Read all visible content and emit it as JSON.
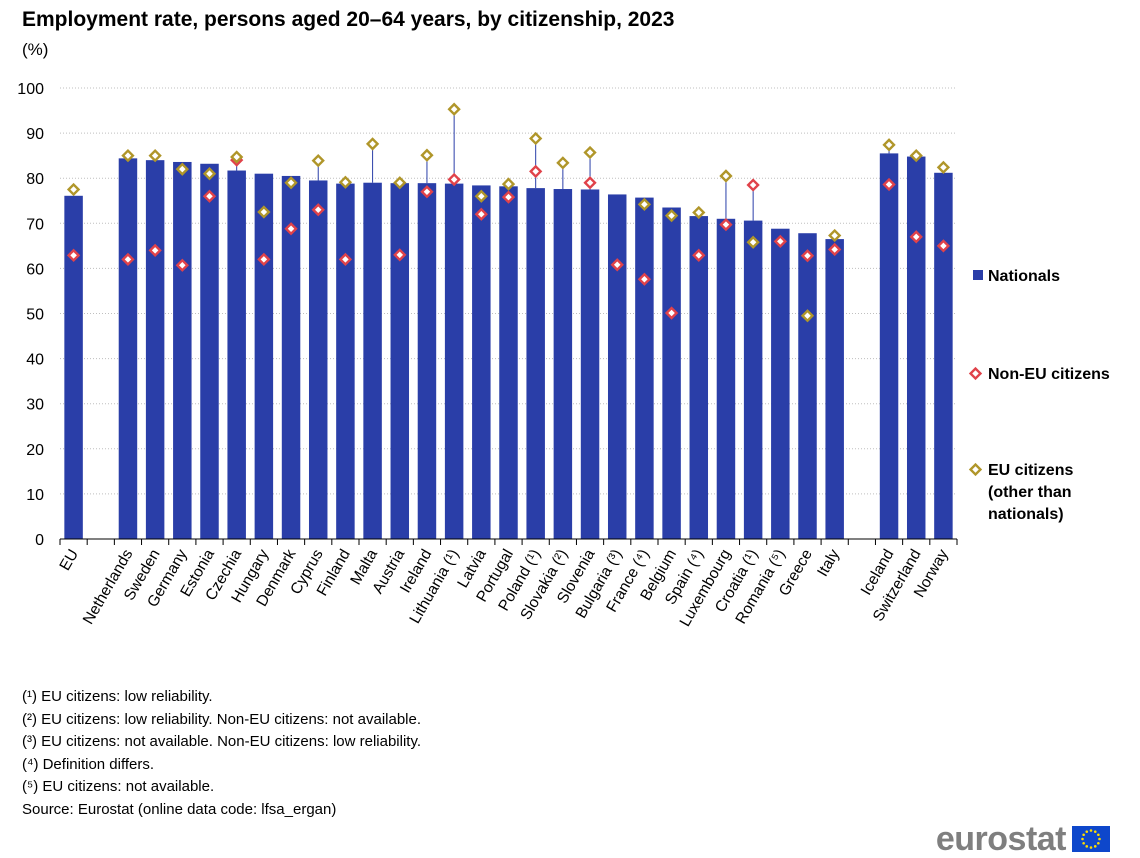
{
  "title": "Employment rate, persons aged 20–64 years, by citizenship, 2023",
  "subtitle": "(%)",
  "colors": {
    "nationals": "#2a3ea8",
    "non_eu": "#e0424a",
    "eu": "#b0962a",
    "grid": "#bfbfbf",
    "axis": "#000000",
    "logo_text": "#7f7f7f",
    "flag": "#0e47cb",
    "stars": "#ffdd00"
  },
  "chart_data": {
    "type": "bar",
    "title": "Employment rate, persons aged 20–64 years, by citizenship, 2023",
    "ylabel": "(%)",
    "ylim": [
      0,
      100
    ],
    "yticks": [
      0,
      10,
      20,
      30,
      40,
      50,
      60,
      70,
      80,
      90,
      100
    ],
    "grid": true,
    "legend_position": "right",
    "groups": [
      [
        "EU"
      ],
      [
        "Netherlands",
        "Sweden",
        "Germany",
        "Estonia",
        "Czechia",
        "Hungary",
        "Denmark",
        "Cyprus",
        "Finland",
        "Malta",
        "Austria",
        "Ireland",
        "Lithuania (¹)",
        "Latvia",
        "Portugal",
        "Poland (¹)",
        "Slovakia (²)",
        "Slovenia",
        "Bulgaria (³)",
        "France (⁴)",
        "Belgium",
        "Spain (⁴)",
        "Luxembourg",
        "Croatia (¹)",
        "Romania (⁵)",
        "Greece",
        "Italy"
      ],
      [
        "Iceland",
        "Switzerland",
        "Norway"
      ]
    ],
    "categories": [
      "EU",
      "Netherlands",
      "Sweden",
      "Germany",
      "Estonia",
      "Czechia",
      "Hungary",
      "Denmark",
      "Cyprus",
      "Finland",
      "Malta",
      "Austria",
      "Ireland",
      "Lithuania (¹)",
      "Latvia",
      "Portugal",
      "Poland (¹)",
      "Slovakia (²)",
      "Slovenia",
      "Bulgaria (³)",
      "France (⁴)",
      "Belgium",
      "Spain (⁴)",
      "Luxembourg",
      "Croatia (¹)",
      "Romania (⁵)",
      "Greece",
      "Italy",
      "Iceland",
      "Switzerland",
      "Norway"
    ],
    "series": [
      {
        "name": "Nationals",
        "kind": "bar",
        "values": [
          76.1,
          84.4,
          84.0,
          83.6,
          83.2,
          81.7,
          81.0,
          80.5,
          79.5,
          78.8,
          79.0,
          78.9,
          78.9,
          78.8,
          78.4,
          78.2,
          77.8,
          77.6,
          77.5,
          76.4,
          75.7,
          73.5,
          71.6,
          71.0,
          70.6,
          68.8,
          67.8,
          66.5,
          85.5,
          84.8,
          81.2
        ]
      },
      {
        "name": "Non-EU citizens",
        "kind": "marker",
        "values": [
          62.9,
          62.0,
          64.0,
          60.7,
          76.0,
          84.0,
          62.0,
          68.8,
          73.0,
          62.0,
          null,
          63.0,
          77.0,
          79.7,
          72.0,
          75.8,
          81.5,
          null,
          79.0,
          60.8,
          57.6,
          50.1,
          62.9,
          69.7,
          78.5,
          66.0,
          62.8,
          64.2,
          78.6,
          67.0,
          65.0
        ]
      },
      {
        "name": "EU citizens (other than nationals)",
        "kind": "marker",
        "values": [
          77.5,
          85.0,
          85.0,
          82.0,
          81.0,
          84.7,
          72.5,
          79.0,
          83.9,
          79.1,
          87.6,
          79.0,
          85.1,
          95.3,
          76.0,
          78.7,
          88.8,
          83.4,
          85.7,
          null,
          74.2,
          71.7,
          72.4,
          80.5,
          65.8,
          null,
          49.5,
          67.3,
          87.4,
          85.0,
          82.4
        ]
      }
    ],
    "legend": {
      "nationals": "Nationals",
      "non_eu": "Non-EU citizens",
      "eu_line1": "EU citizens",
      "eu_line2": "(other than",
      "eu_line3": "nationals)"
    }
  },
  "footnotes": [
    "(¹) EU citizens: low reliability.",
    "(²) EU citizens: low reliability. Non-EU citizens: not available.",
    "(³) EU citizens: not available. Non-EU citizens: low reliability.",
    "(⁴) Definition differs.",
    "(⁵) EU citizens: not available.",
    "Source: Eurostat (online data code: lfsa_ergan)"
  ],
  "logo": {
    "text": "eurostat",
    "flag_icon": "eu-flag-icon"
  }
}
